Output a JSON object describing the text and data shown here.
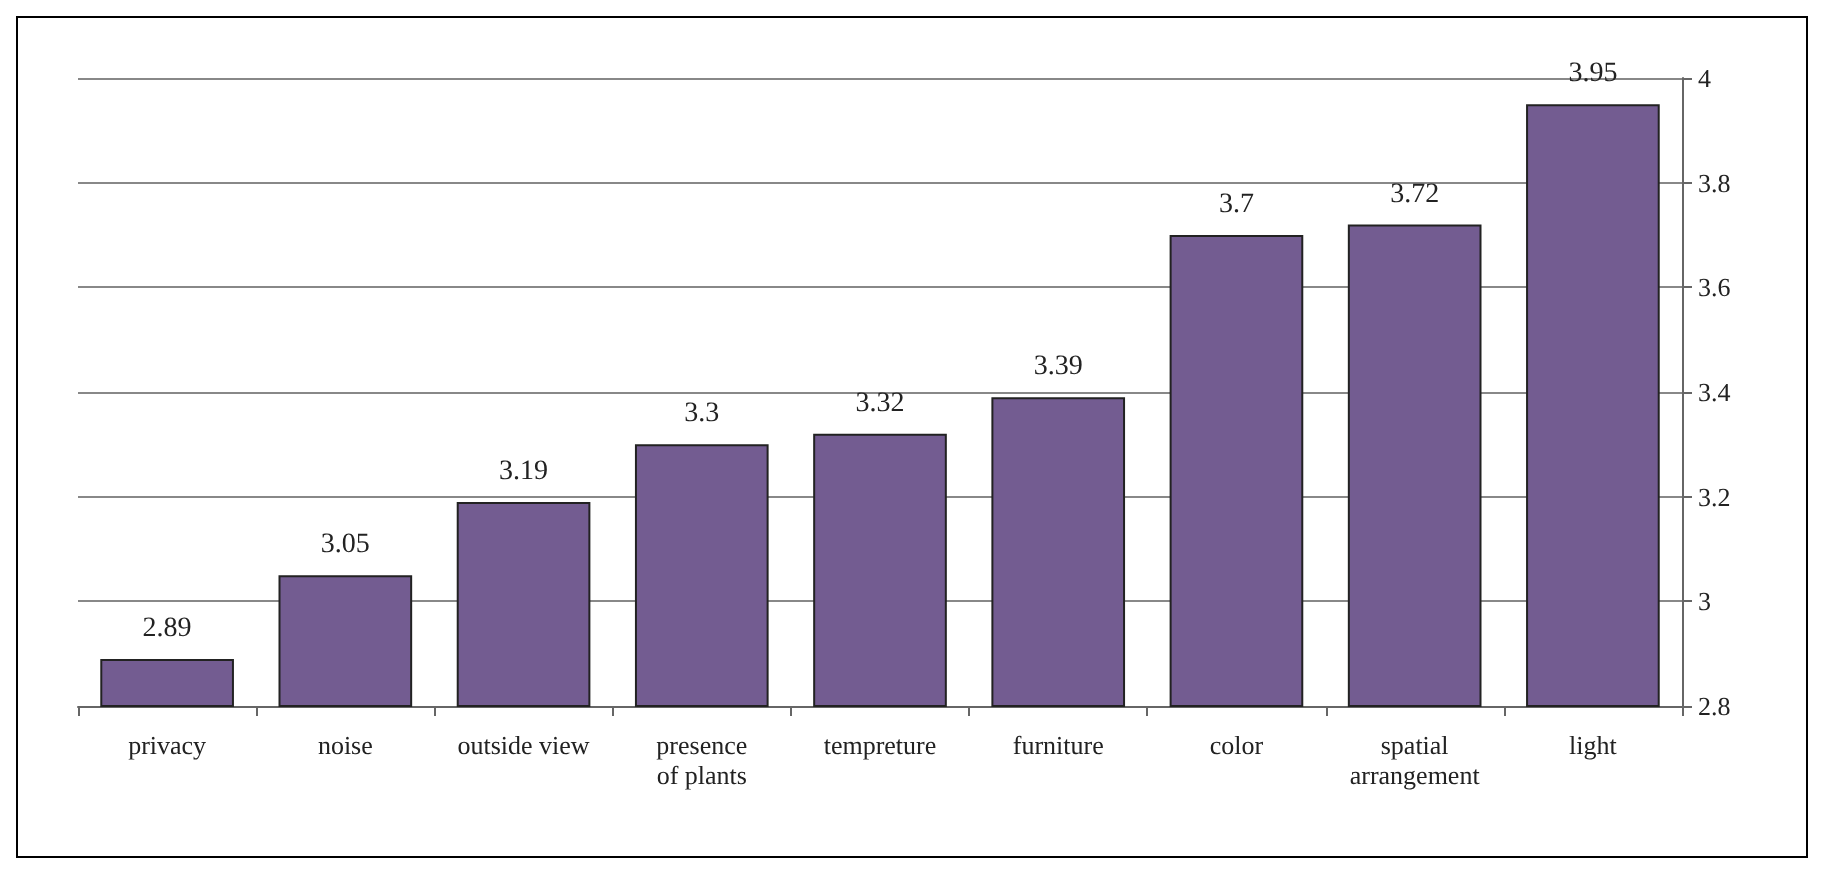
{
  "chart_data": {
    "type": "bar",
    "categories": [
      "privacy",
      "noise",
      "outside view",
      "presence\nof plants",
      "tempreture",
      "furniture",
      "color",
      "spatial\narrangement",
      "light"
    ],
    "values": [
      2.89,
      3.05,
      3.19,
      3.3,
      3.32,
      3.39,
      3.7,
      3.72,
      3.95
    ],
    "color": "#735c91",
    "ylim": [
      2.8,
      4
    ],
    "yticks": [
      2.8,
      3,
      3.2,
      3.4,
      3.6,
      3.8,
      4
    ],
    "grid": "y",
    "data_labels": true
  }
}
